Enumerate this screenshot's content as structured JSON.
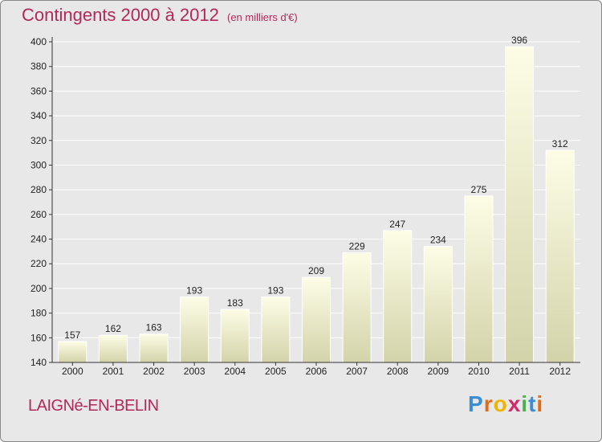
{
  "title": "Contingents 2000 à 2012",
  "subtitle": "(en milliers d'€)",
  "commune": "LAIGNé-EN-BELIN",
  "logo": {
    "letters": [
      {
        "ch": "P",
        "color": "#3a8fd4"
      },
      {
        "ch": "r",
        "color": "#e06b1b"
      },
      {
        "ch": "o",
        "color": "#f2b300"
      },
      {
        "ch": "x",
        "color": "#d42a6c"
      },
      {
        "ch": "i",
        "color": "#4caf50"
      },
      {
        "ch": "t",
        "color": "#3a8fd4"
      },
      {
        "ch": "i",
        "color": "#e06b1b"
      }
    ]
  },
  "colors": {
    "title": "#b3285a",
    "bar_top": "#fdfde6",
    "bar_bottom": "#d3d3aa",
    "grid": "#ffffff",
    "background": "#e8e8e8"
  },
  "chart_data": {
    "type": "bar",
    "categories": [
      "2000",
      "2001",
      "2002",
      "2003",
      "2004",
      "2005",
      "2006",
      "2007",
      "2008",
      "2009",
      "2010",
      "2011",
      "2012"
    ],
    "values": [
      157,
      162,
      163,
      193,
      183,
      193,
      209,
      229,
      247,
      234,
      275,
      396,
      312
    ],
    "ylim": [
      140,
      400
    ],
    "yticks": [
      140,
      160,
      180,
      200,
      220,
      240,
      260,
      280,
      300,
      320,
      340,
      360,
      380,
      400
    ],
    "grid": true
  }
}
